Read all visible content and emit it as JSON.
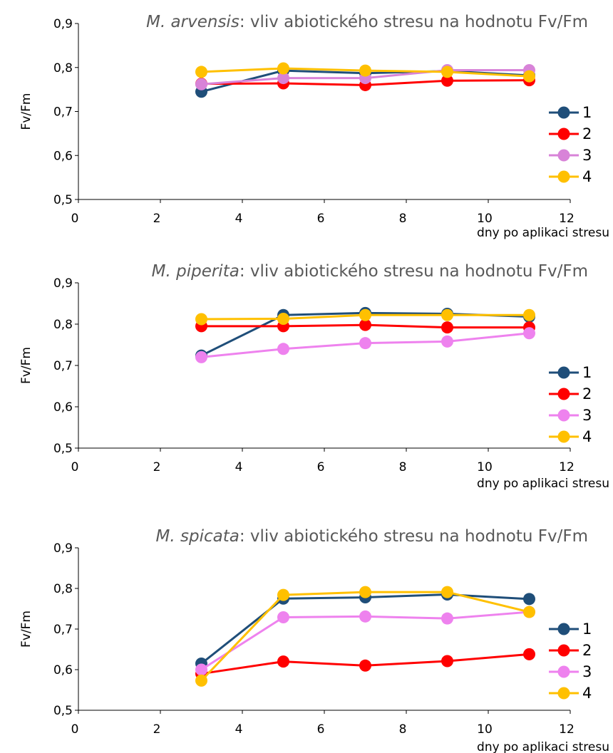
{
  "chart_data": [
    {
      "type": "line",
      "title_species": "M. arvensis",
      "title_rest": ": vliv abiotického stresu na hodnotu Fv/Fm",
      "xlabel": "dny po aplikaci stresu",
      "ylabel": "Fv/Fm",
      "xlim": [
        0,
        12
      ],
      "ylim": [
        0.5,
        0.9
      ],
      "x_ticks": [
        "0",
        "2",
        "4",
        "6",
        "8",
        "10",
        "12"
      ],
      "y_ticks": [
        "0,5",
        "0,6",
        "0,7",
        "0,8",
        "0,9"
      ],
      "grid": false,
      "legend": "right",
      "x": [
        3,
        5,
        7,
        9,
        11
      ],
      "series": [
        {
          "name": "1",
          "color": "#1f4e79",
          "values": [
            0.745,
            0.793,
            0.787,
            0.792,
            0.782
          ]
        },
        {
          "name": "2",
          "color": "#ff0000",
          "values": [
            0.763,
            0.764,
            0.76,
            0.77,
            0.771
          ]
        },
        {
          "name": "3",
          "color": "#d883d8",
          "values": [
            0.762,
            0.776,
            0.776,
            0.794,
            0.794
          ]
        },
        {
          "name": "4",
          "color": "#ffc000",
          "values": [
            0.79,
            0.798,
            0.793,
            0.79,
            0.78
          ]
        }
      ]
    },
    {
      "type": "line",
      "title_species": "M. piperita",
      "title_rest": ": vliv abiotického stresu na hodnotu Fv/Fm",
      "xlabel": "dny po aplikaci stresu",
      "ylabel": "Fv/Fm",
      "xlim": [
        0,
        12
      ],
      "ylim": [
        0.5,
        0.9
      ],
      "x_ticks": [
        "0",
        "2",
        "4",
        "6",
        "8",
        "10",
        "12"
      ],
      "y_ticks": [
        "0,5",
        "0,6",
        "0,7",
        "0,8",
        "0,9"
      ],
      "grid": false,
      "legend": "right",
      "x": [
        3,
        5,
        7,
        9,
        11
      ],
      "series": [
        {
          "name": "1",
          "color": "#1f4e79",
          "values": [
            0.724,
            0.822,
            0.827,
            0.825,
            0.818
          ]
        },
        {
          "name": "2",
          "color": "#ff0000",
          "values": [
            0.795,
            0.795,
            0.798,
            0.792,
            0.792
          ]
        },
        {
          "name": "3",
          "color": "#ee82ee",
          "values": [
            0.72,
            0.74,
            0.754,
            0.758,
            0.778
          ]
        },
        {
          "name": "4",
          "color": "#ffc000",
          "values": [
            0.812,
            0.813,
            0.822,
            0.822,
            0.822
          ]
        }
      ]
    },
    {
      "type": "line",
      "title_species": "M. spicata",
      "title_rest": ": vliv abiotického stresu na hodnotu Fv/Fm",
      "xlabel": "dny po aplikaci stresu",
      "ylabel": "Fv/Fm",
      "xlim": [
        0,
        12
      ],
      "ylim": [
        0.5,
        0.9
      ],
      "x_ticks": [
        "0",
        "2",
        "4",
        "6",
        "8",
        "10",
        "12"
      ],
      "y_ticks": [
        "0,5",
        "0,6",
        "0,7",
        "0,8",
        "0,9"
      ],
      "grid": false,
      "legend": "right",
      "x": [
        3,
        5,
        7,
        9,
        11
      ],
      "series": [
        {
          "name": "1",
          "color": "#1f4e79",
          "values": [
            0.615,
            0.775,
            0.778,
            0.785,
            0.774
          ]
        },
        {
          "name": "2",
          "color": "#ff0000",
          "values": [
            0.59,
            0.62,
            0.61,
            0.621,
            0.638
          ]
        },
        {
          "name": "3",
          "color": "#ee82ee",
          "values": [
            0.6,
            0.729,
            0.731,
            0.726,
            0.742
          ]
        },
        {
          "name": "4",
          "color": "#ffc000",
          "values": [
            0.573,
            0.784,
            0.791,
            0.791,
            0.742
          ]
        }
      ]
    }
  ]
}
